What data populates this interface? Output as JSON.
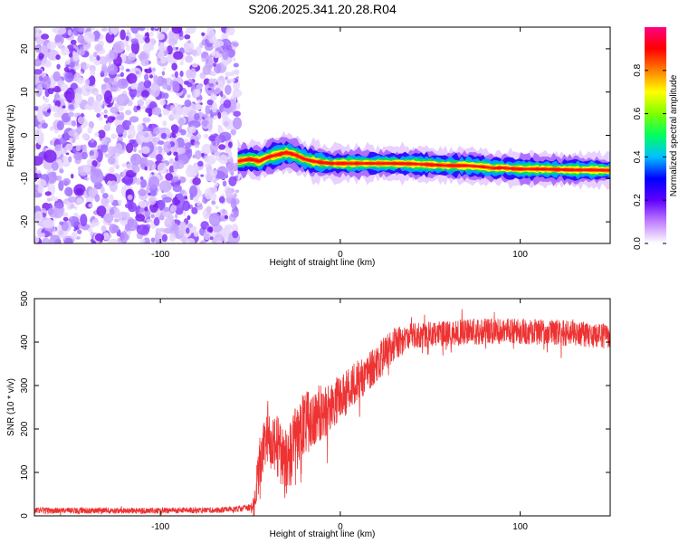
{
  "title": "S206.2025.341.20.28.R04",
  "chart_data": [
    {
      "type": "heatmap",
      "xlabel": "Height of straight line (km)",
      "ylabel": "Frequency (Hz)",
      "xlim": [
        -170,
        150
      ],
      "ylim": [
        -25,
        25
      ],
      "x_ticks": [
        {
          "v": -100,
          "label": "-100"
        },
        {
          "v": 0,
          "label": "0"
        },
        {
          "v": 100,
          "label": "100"
        }
      ],
      "y_ticks": [
        {
          "v": 20,
          "label": "20"
        },
        {
          "v": 10,
          "label": "10"
        },
        {
          "v": 0,
          "label": "0"
        },
        {
          "v": -10,
          "label": "-10"
        },
        {
          "v": -20,
          "label": "-20"
        }
      ],
      "noise_region_x": [
        -170,
        -57
      ],
      "signal_start_x": -57,
      "ridge": {
        "x": [
          -57,
          -50,
          -45,
          -40,
          -35,
          -30,
          -25,
          -20,
          -15,
          -10,
          -5,
          0,
          10,
          20,
          30,
          40,
          50,
          60,
          70,
          80,
          85,
          90,
          95,
          100,
          110,
          120,
          130,
          140,
          150
        ],
        "y": [
          -6,
          -5.5,
          -6,
          -5,
          -4.5,
          -4,
          -4.5,
          -5.5,
          -6,
          -6.3,
          -6.5,
          -6.5,
          -6.5,
          -6.5,
          -6.5,
          -6.6,
          -6.8,
          -7,
          -7,
          -7.3,
          -7.6,
          -7.5,
          -7.7,
          -7.8,
          -7.8,
          -7.9,
          -8,
          -8,
          -8.1
        ]
      },
      "colorbar": {
        "label": "Normalized spectral amplitude",
        "range": [
          0,
          1
        ],
        "ticks": [
          {
            "v": 0.0,
            "label": "0.0"
          },
          {
            "v": 0.2,
            "label": "0.2"
          },
          {
            "v": 0.4,
            "label": "0.4"
          },
          {
            "v": 0.6,
            "label": "0.6"
          },
          {
            "v": 0.8,
            "label": "0.8"
          }
        ]
      }
    },
    {
      "type": "line",
      "xlabel": "Height of straight line (km)",
      "ylabel": "SNR (10 * v/v)",
      "xlim": [
        -170,
        150
      ],
      "ylim": [
        0,
        500
      ],
      "color": "#ee3333",
      "x_ticks": [
        {
          "v": -100,
          "label": "-100"
        },
        {
          "v": 0,
          "label": "0"
        },
        {
          "v": 100,
          "label": "100"
        }
      ],
      "y_ticks": [
        {
          "v": 0,
          "label": "0"
        },
        {
          "v": 100,
          "label": "100"
        },
        {
          "v": 200,
          "label": "200"
        },
        {
          "v": 300,
          "label": "300"
        },
        {
          "v": 400,
          "label": "400"
        },
        {
          "v": 500,
          "label": "500"
        }
      ],
      "trend": {
        "x": [
          -170,
          -150,
          -100,
          -60,
          -48,
          -45,
          -40,
          -35,
          -30,
          -25,
          -20,
          -10,
          0,
          10,
          20,
          30,
          40,
          60,
          80,
          100,
          120,
          150
        ],
        "y": [
          12,
          12,
          12,
          14,
          20,
          120,
          180,
          160,
          120,
          170,
          210,
          240,
          270,
          310,
          350,
          395,
          415,
          420,
          425,
          425,
          422,
          412
        ]
      },
      "noise_amplitude": {
        "x": [
          -170,
          -50,
          -45,
          -25,
          0,
          20,
          40,
          150
        ],
        "y": [
          7,
          7,
          60,
          80,
          55,
          45,
          30,
          30
        ]
      }
    }
  ]
}
